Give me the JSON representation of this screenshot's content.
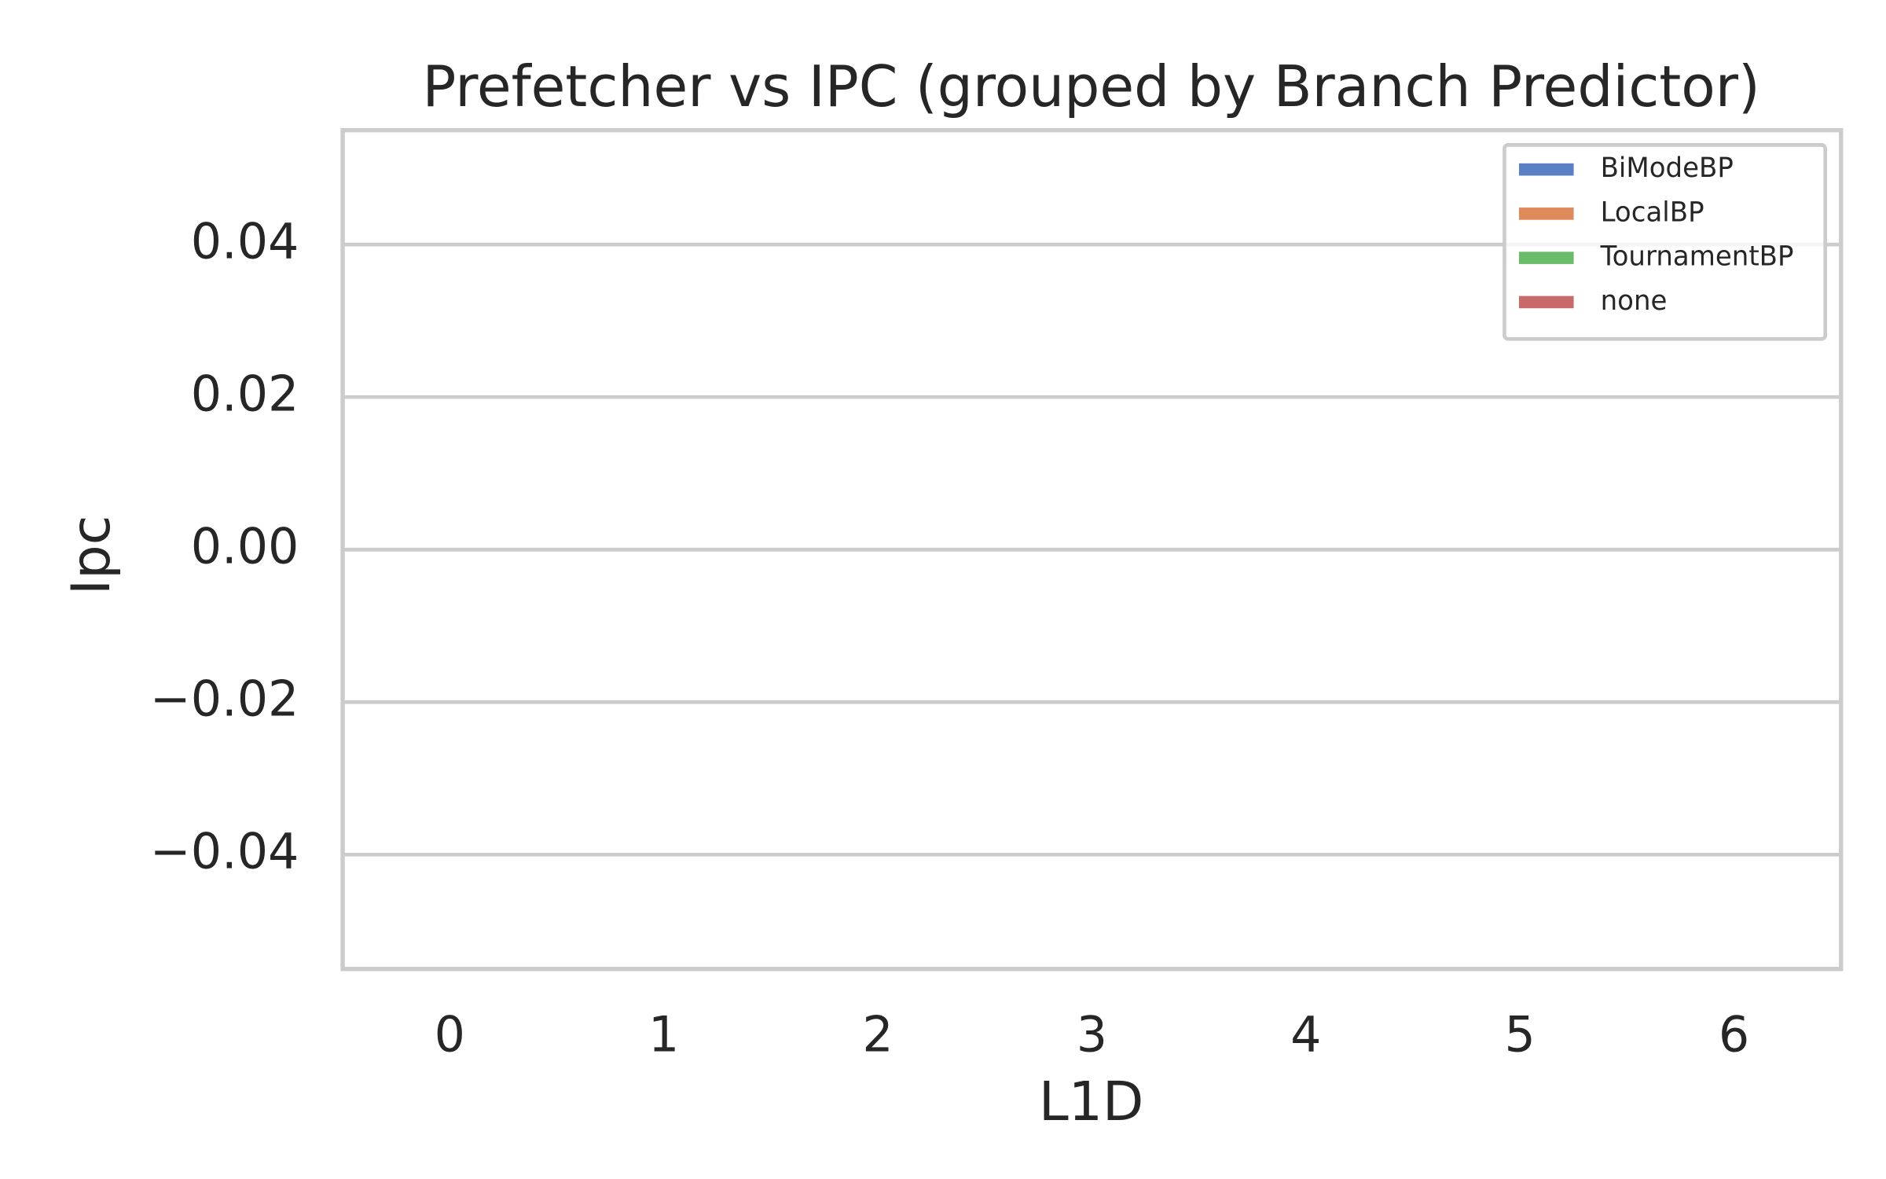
{
  "chart_data": {
    "type": "bar",
    "title": "Prefetcher vs IPC (grouped by Branch Predictor)",
    "x_label": "L1D",
    "y_label": "Ipc",
    "categories": [
      "0",
      "1",
      "2",
      "3",
      "4",
      "5",
      "6"
    ],
    "series": [
      {
        "name": "BiModeBP",
        "color": "#5a7fc4",
        "values": [
          null,
          null,
          null,
          null,
          null,
          null,
          null
        ]
      },
      {
        "name": "LocalBP",
        "color": "#de8a5a",
        "values": [
          null,
          null,
          null,
          null,
          null,
          null,
          null
        ]
      },
      {
        "name": "TournamentBP",
        "color": "#6abc6a",
        "values": [
          null,
          null,
          null,
          null,
          null,
          null,
          null
        ]
      },
      {
        "name": "none",
        "color": "#c96a6a",
        "values": [
          null,
          null,
          null,
          null,
          null,
          null,
          null
        ]
      }
    ],
    "ylim": [
      -0.055,
      0.055
    ],
    "yticks": [
      {
        "value": -0.04,
        "label": "−0.04"
      },
      {
        "value": -0.02,
        "label": "−0.02"
      },
      {
        "value": 0,
        "label": "0.00"
      },
      0.02,
      0.04
    ],
    "grid": true,
    "legend": "upper right"
  }
}
